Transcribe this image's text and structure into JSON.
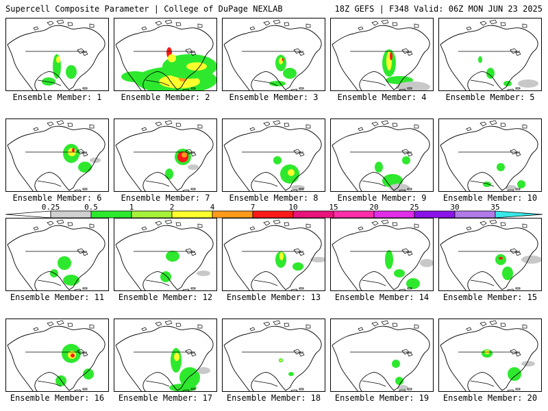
{
  "header": {
    "left": "Supercell Composite Parameter | College of DuPage NEXLAB",
    "right": "18Z GEFS | F348 Valid: 06Z MON JUN 23 2025"
  },
  "colorbar": {
    "labels": [
      "0.25",
      "0.5",
      "1",
      "2",
      "4",
      "7",
      "10",
      "15",
      "20",
      "25",
      "30",
      "35"
    ],
    "colors": [
      "#d0d0d0",
      "#2ee82e",
      "#a6f23a",
      "#ffff2e",
      "#ff9a1a",
      "#ff1a1a",
      "#e8147a",
      "#ff2ea8",
      "#e02ee8",
      "#8a14e8",
      "#b07ae8",
      "#38e8e8"
    ]
  },
  "members": [
    {
      "label": "Ensemble Member: 1",
      "blobs": [
        [
          "g",
          74,
          70,
          6,
          18
        ],
        [
          "y",
          76,
          60,
          3,
          5
        ],
        [
          "g",
          95,
          78,
          8,
          10
        ],
        [
          "g",
          62,
          92,
          10,
          6
        ]
      ]
    },
    {
      "label": "Ensemble Member: 2",
      "blobs": [
        [
          "g",
          90,
          90,
          60,
          20
        ],
        [
          "y",
          95,
          92,
          30,
          10
        ],
        [
          "o",
          100,
          88,
          6,
          4
        ],
        [
          "g",
          110,
          70,
          40,
          18
        ],
        [
          "y",
          120,
          70,
          15,
          6
        ],
        [
          "g",
          30,
          85,
          20,
          8
        ],
        [
          "r",
          80,
          50,
          4,
          8
        ],
        [
          "y",
          84,
          58,
          6,
          6
        ]
      ]
    },
    {
      "label": "Ensemble Member: 3",
      "blobs": [
        [
          "g",
          85,
          65,
          8,
          12
        ],
        [
          "y",
          85,
          62,
          3,
          5
        ],
        [
          "r",
          88,
          60,
          1.5,
          2
        ],
        [
          "g",
          98,
          80,
          10,
          8
        ],
        [
          "g",
          80,
          95,
          12,
          4
        ]
      ]
    },
    {
      "label": "Ensemble Member: 4",
      "blobs": [
        [
          "g",
          85,
          65,
          10,
          20
        ],
        [
          "y",
          85,
          62,
          4,
          14
        ],
        [
          "r",
          88,
          55,
          2,
          6
        ],
        [
          "g",
          100,
          90,
          20,
          6
        ],
        [
          "gr",
          120,
          100,
          25,
          8
        ]
      ]
    },
    {
      "label": "Ensemble Member: 5",
      "blobs": [
        [
          "g",
          75,
          80,
          6,
          8
        ],
        [
          "g",
          100,
          95,
          6,
          4
        ],
        [
          "g",
          60,
          60,
          3,
          5
        ],
        [
          "gr",
          130,
          95,
          15,
          6
        ]
      ]
    },
    {
      "label": "Ensemble Member: 6",
      "blobs": [
        [
          "g",
          95,
          50,
          12,
          14
        ],
        [
          "y",
          96,
          48,
          6,
          6
        ],
        [
          "r",
          98,
          45,
          2,
          3
        ],
        [
          "g",
          115,
          70,
          10,
          8
        ],
        [
          "gr",
          130,
          60,
          8,
          4
        ]
      ]
    },
    {
      "label": "Ensemble Member: 7",
      "blobs": [
        [
          "g",
          100,
          55,
          12,
          12
        ],
        [
          "r",
          100,
          55,
          8,
          8
        ],
        [
          "o",
          102,
          52,
          4,
          4
        ],
        [
          "g",
          80,
          80,
          6,
          8
        ],
        [
          "gr",
          115,
          70,
          8,
          4
        ]
      ]
    },
    {
      "label": "Ensemble Member: 8",
      "blobs": [
        [
          "g",
          98,
          80,
          14,
          14
        ],
        [
          "y",
          100,
          78,
          5,
          5
        ],
        [
          "g",
          80,
          60,
          6,
          6
        ],
        [
          "gr",
          110,
          100,
          10,
          4
        ]
      ]
    },
    {
      "label": "Ensemble Member: 9",
      "blobs": [
        [
          "g",
          70,
          70,
          6,
          8
        ],
        [
          "g",
          90,
          90,
          15,
          10
        ],
        [
          "gr",
          100,
          100,
          15,
          6
        ],
        [
          "g",
          110,
          60,
          6,
          6
        ]
      ]
    },
    {
      "label": "Ensemble Member: 10",
      "blobs": [
        [
          "g",
          90,
          70,
          6,
          6
        ],
        [
          "g",
          120,
          95,
          6,
          6
        ],
        [
          "g",
          70,
          95,
          6,
          4
        ],
        [
          "gr",
          105,
          100,
          8,
          4
        ]
      ]
    },
    {
      "label": "Ensemble Member: 11",
      "blobs": [
        [
          "g",
          85,
          65,
          10,
          10
        ],
        [
          "g",
          95,
          90,
          12,
          8
        ],
        [
          "g",
          70,
          80,
          6,
          6
        ]
      ]
    },
    {
      "label": "Ensemble Member: 12",
      "blobs": [
        [
          "g",
          85,
          55,
          10,
          8
        ],
        [
          "g",
          75,
          85,
          8,
          8
        ],
        [
          "gr",
          130,
          80,
          10,
          4
        ]
      ]
    },
    {
      "label": "Ensemble Member: 13",
      "blobs": [
        [
          "g",
          85,
          60,
          8,
          12
        ],
        [
          "y",
          86,
          55,
          3,
          6
        ],
        [
          "g",
          110,
          70,
          8,
          6
        ],
        [
          "gr",
          140,
          60,
          12,
          4
        ]
      ]
    },
    {
      "label": "Ensemble Member: 14",
      "blobs": [
        [
          "g",
          85,
          60,
          6,
          14
        ],
        [
          "g",
          100,
          80,
          8,
          6
        ],
        [
          "g",
          120,
          95,
          10,
          8
        ],
        [
          "gr",
          140,
          65,
          10,
          6
        ]
      ]
    },
    {
      "label": "Ensemble Member: 15",
      "blobs": [
        [
          "g",
          90,
          60,
          8,
          8
        ],
        [
          "r",
          90,
          58,
          3,
          2
        ],
        [
          "g",
          100,
          80,
          8,
          10
        ],
        [
          "gr",
          135,
          60,
          15,
          6
        ]
      ]
    },
    {
      "label": "Ensemble Member: 16",
      "blobs": [
        [
          "g",
          95,
          50,
          14,
          14
        ],
        [
          "y",
          96,
          52,
          6,
          6
        ],
        [
          "r",
          97,
          53,
          3,
          3
        ],
        [
          "g",
          80,
          90,
          8,
          8
        ],
        [
          "g",
          120,
          80,
          8,
          8
        ]
      ]
    },
    {
      "label": "Ensemble Member: 17",
      "blobs": [
        [
          "g",
          90,
          60,
          8,
          18
        ],
        [
          "y",
          91,
          55,
          4,
          6
        ],
        [
          "g",
          110,
          85,
          15,
          15
        ],
        [
          "g",
          100,
          100,
          20,
          6
        ],
        [
          "gr",
          130,
          75,
          10,
          5
        ]
      ]
    },
    {
      "label": "Ensemble Member: 18",
      "blobs": [
        [
          "g",
          85,
          60,
          3,
          3
        ],
        [
          "y",
          85,
          60,
          1.5,
          1.5
        ],
        [
          "g",
          100,
          80,
          4,
          3
        ]
      ]
    },
    {
      "label": "Ensemble Member: 19",
      "blobs": [
        [
          "g",
          95,
          65,
          6,
          6
        ],
        [
          "g",
          100,
          90,
          6,
          6
        ],
        [
          "gr",
          105,
          100,
          8,
          4
        ]
      ]
    },
    {
      "label": "Ensemble Member: 20",
      "blobs": [
        [
          "g",
          70,
          50,
          8,
          6
        ],
        [
          "y",
          70,
          48,
          4,
          3
        ],
        [
          "g",
          110,
          80,
          10,
          10
        ],
        [
          "gr",
          130,
          65,
          10,
          4
        ]
      ]
    }
  ]
}
